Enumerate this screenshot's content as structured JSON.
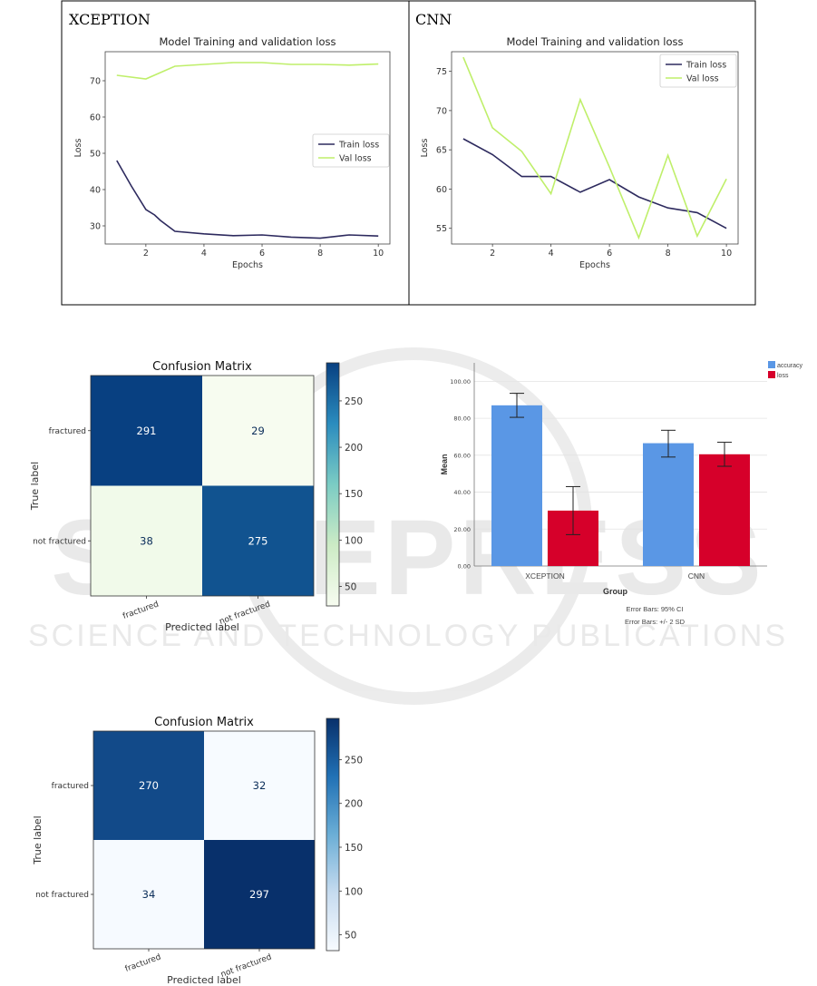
{
  "watermark": {
    "big_text": "SCITEPRESS",
    "sub_text": "SCIENCE AND TECHNOLOGY PUBLICATIONS"
  },
  "colors": {
    "train_line": "#2d2a5e",
    "val_line": "#bfef6a",
    "accuracy_bar": "#5a97e5",
    "loss_bar": "#d6002a",
    "watermark": "#d6d6d6"
  },
  "chart_data": [
    {
      "id": "xception-loss",
      "type": "line",
      "panel_label": "XCEPTION",
      "title": "Model Training and validation loss",
      "xlabel": "Epochs",
      "ylabel": "Loss",
      "xlim": [
        0.6,
        10.4
      ],
      "ylim": [
        25,
        78
      ],
      "xticks": [
        2,
        4,
        6,
        8,
        10
      ],
      "yticks": [
        30,
        40,
        50,
        60,
        70
      ],
      "legend_position": "center-right",
      "series": [
        {
          "name": "Train loss",
          "color": "#2d2a5e",
          "x": [
            1,
            1.5,
            2,
            2.3,
            2.5,
            3,
            4,
            5,
            6,
            7,
            8,
            9,
            10
          ],
          "y": [
            48,
            41,
            34.5,
            33,
            31.5,
            28.5,
            27.8,
            27.3,
            27.5,
            26.9,
            26.6,
            27.5,
            27.2
          ]
        },
        {
          "name": "Val loss",
          "color": "#bfef6a",
          "x": [
            1,
            2,
            3,
            4,
            5,
            6,
            7,
            8,
            9,
            10
          ],
          "y": [
            71.5,
            70.5,
            74,
            74.5,
            75,
            75,
            74.5,
            74.5,
            74.3,
            74.6
          ]
        }
      ]
    },
    {
      "id": "cnn-loss",
      "type": "line",
      "panel_label": "CNN",
      "title": "Model Training and validation loss",
      "xlabel": "Epochs",
      "ylabel": "Loss",
      "xlim": [
        0.6,
        10.4
      ],
      "ylim": [
        53,
        77.5
      ],
      "xticks": [
        2,
        4,
        6,
        8,
        10
      ],
      "yticks": [
        55,
        60,
        65,
        70,
        75
      ],
      "legend_position": "top-right",
      "series": [
        {
          "name": "Train loss",
          "color": "#2d2a5e",
          "x": [
            1,
            2,
            3,
            4,
            5,
            6,
            7,
            8,
            9,
            10
          ],
          "y": [
            66.4,
            64.4,
            61.6,
            61.6,
            59.6,
            61.2,
            59,
            57.6,
            57,
            55
          ]
        },
        {
          "name": "Val loss",
          "color": "#bfef6a",
          "x": [
            1,
            2,
            3,
            4,
            5,
            6,
            7,
            8,
            9,
            10
          ],
          "y": [
            76.8,
            67.8,
            64.8,
            59.4,
            71.4,
            62.8,
            53.8,
            64.3,
            54,
            61.3
          ]
        }
      ]
    },
    {
      "id": "cm-top",
      "type": "heatmap",
      "title": "Confusion Matrix",
      "xlabel": "Predicted label",
      "ylabel": "True label",
      "rows": [
        "fractured",
        "not fractured"
      ],
      "cols": [
        "fractured",
        "not fractured"
      ],
      "values": [
        [
          291,
          29
        ],
        [
          38,
          275
        ]
      ],
      "colorscale": "GnBu",
      "color_range": [
        29,
        291
      ],
      "colorbar_ticks": [
        50,
        100,
        150,
        200,
        250
      ]
    },
    {
      "id": "group-bar",
      "type": "bar",
      "xlabel": "Group",
      "ylabel": "Mean",
      "categories": [
        "XCEPTION",
        "CNN"
      ],
      "ylim": [
        0,
        110
      ],
      "yticks": [
        0,
        20,
        40,
        60,
        80,
        100
      ],
      "ytick_labels": [
        "0.00",
        "20.00",
        "40.00",
        "60.00",
        "80.00",
        "100.00"
      ],
      "series": [
        {
          "name": "accuracy",
          "color": "#5a97e5",
          "values": [
            87,
            66.5
          ],
          "error_low": [
            80.5,
            59
          ],
          "error_high": [
            93.5,
            73.5
          ]
        },
        {
          "name": "loss",
          "color": "#d6002a",
          "values": [
            30,
            60.5
          ],
          "error_low": [
            17,
            54
          ],
          "error_high": [
            43,
            67
          ]
        }
      ],
      "legend_position": "top-right",
      "notes": [
        "Error Bars: 95% CI",
        "Error Bars: +/- 2 SD"
      ]
    },
    {
      "id": "cm-bottom",
      "type": "heatmap",
      "title": "Confusion Matrix",
      "xlabel": "Predicted label",
      "ylabel": "True label",
      "rows": [
        "fractured",
        "not fractured"
      ],
      "cols": [
        "fractured",
        "not fractured"
      ],
      "values": [
        [
          270,
          32
        ],
        [
          34,
          297
        ]
      ],
      "colorscale": "Blues",
      "color_range": [
        32,
        297
      ],
      "colorbar_ticks": [
        50,
        100,
        150,
        200,
        250
      ]
    }
  ]
}
